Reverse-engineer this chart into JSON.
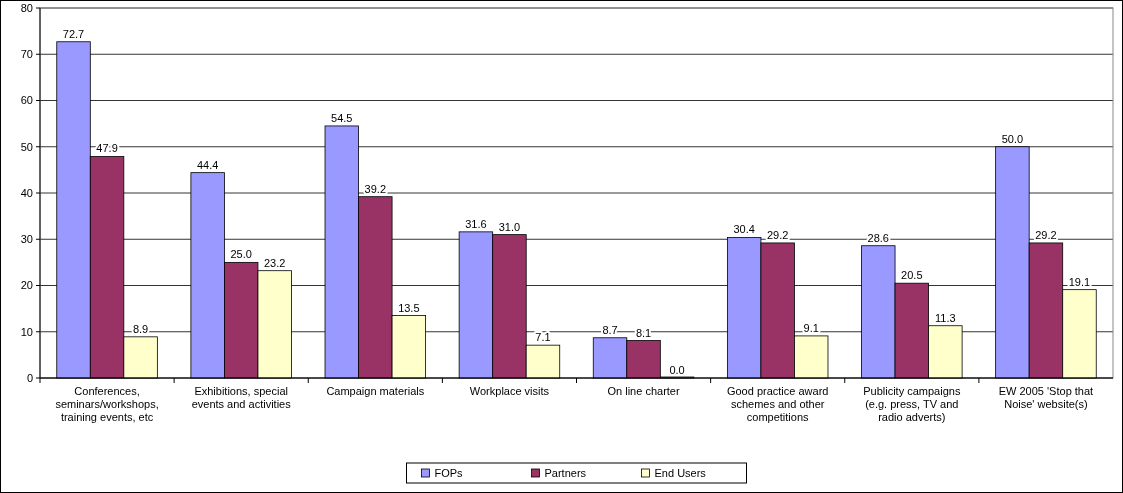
{
  "chart_data": {
    "type": "bar",
    "categories": [
      "Conferences, seminars/workshops, training events, etc",
      "Exhibitions, special events and activities",
      "Campaign materials",
      "Workplace visits",
      "On line charter",
      "Good practice award schemes and other competitions",
      "Publicity campaigns (e.g. press, TV and radio adverts)",
      "EW 2005 'Stop that Noise' website(s)"
    ],
    "series": [
      {
        "name": "FOPs",
        "color": "#9999ff",
        "values": [
          72.7,
          44.4,
          54.5,
          31.6,
          8.7,
          30.4,
          28.6,
          50
        ],
        "value_labels": [
          "72.7",
          "44.4",
          "54.5",
          "31.6",
          "8.7",
          "30.4",
          "28.6",
          "50.0"
        ]
      },
      {
        "name": "Partners",
        "color": "#993366",
        "values": [
          47.9,
          25,
          39.2,
          31,
          8.1,
          29.2,
          20.5,
          29.2
        ],
        "value_labels": [
          "47.9",
          "25.0",
          "39.2",
          "31.0",
          "8.1",
          "29.2",
          "20.5",
          "29.2"
        ]
      },
      {
        "name": "End Users",
        "color": "#ffffcc",
        "values": [
          8.9,
          23.2,
          13.5,
          7.1,
          0,
          9.1,
          11.3,
          19.1
        ],
        "value_labels": [
          "8.9",
          "23.2",
          "13.5",
          "7.1",
          "0.0",
          "9.1",
          "11.3",
          "19.1"
        ]
      }
    ],
    "ylim": [
      0,
      80
    ],
    "yticks": [
      0,
      10,
      20,
      30,
      40,
      50,
      60,
      70,
      80
    ],
    "grid": "y",
    "legend": "bottom"
  }
}
